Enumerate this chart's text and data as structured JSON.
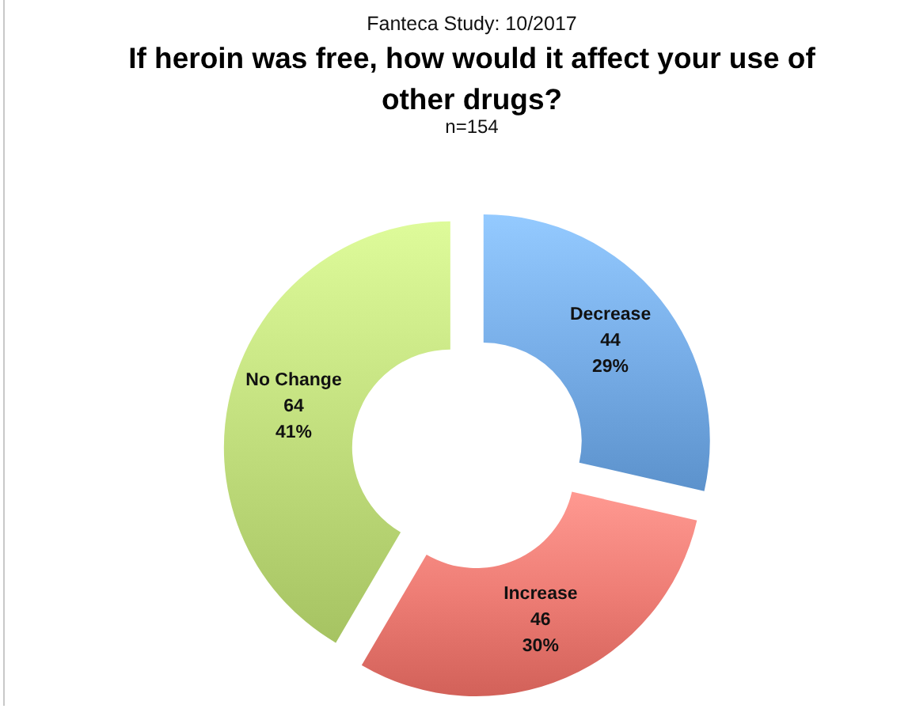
{
  "chart_data": {
    "type": "donut",
    "title": "If heroin was free, how would it affect your use of other drugs?",
    "subtitle": "n=154",
    "annotations": [
      "Fanteca Study: 10/2017"
    ],
    "categories": [
      "Decrease",
      "Increase",
      "No Change"
    ],
    "values": [
      44,
      46,
      64
    ],
    "value_labels": [
      "44\n29%",
      "46\n30%",
      "64\n41%"
    ],
    "colors": [
      "#78aee8",
      "#ee7d75",
      "#c2df7e"
    ],
    "legend": false
  }
}
